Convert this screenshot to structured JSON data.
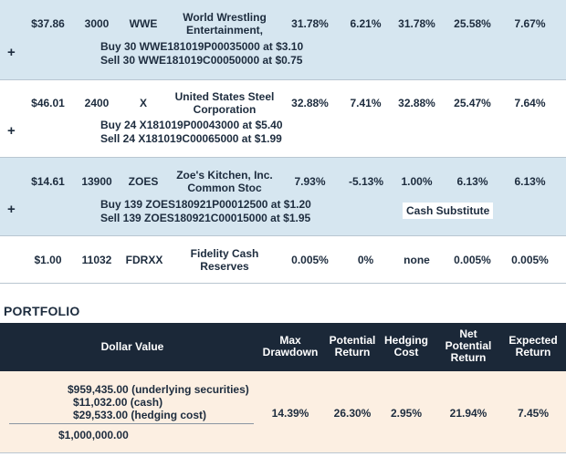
{
  "positions": [
    {
      "price": "$37.86",
      "shares": "3000",
      "ticker": "WWE",
      "name": [
        "World Wrestling",
        "Entertainment,"
      ],
      "c1": "31.78%",
      "c2": "6.21%",
      "c3": "31.78%",
      "c4": "25.58%",
      "c5": "7.67%",
      "buy": "Buy 30 WWE181019P00035000 at $3.10",
      "sell": "Sell 30 WWE181019C00050000 at $0.75",
      "expand": "+"
    },
    {
      "price": "$46.01",
      "shares": "2400",
      "ticker": "X",
      "name": [
        "United States Steel",
        "Corporation"
      ],
      "c1": "32.88%",
      "c2": "7.41%",
      "c3": "32.88%",
      "c4": "25.47%",
      "c5": "7.64%",
      "buy": "Buy 24 X181019P00043000 at $5.40",
      "sell": "Sell 24 X181019C00065000 at $1.99",
      "expand": "+"
    },
    {
      "price": "$14.61",
      "shares": "13900",
      "ticker": "ZOES",
      "name": [
        "Zoe's Kitchen, Inc.",
        "Common Stoc"
      ],
      "c1": "7.93%",
      "c2": "-5.13%",
      "c3": "1.00%",
      "c4": "6.13%",
      "c5": "6.13%",
      "buy": "Buy 139 ZOES180921P00012500 at $1.20",
      "sell": "Sell 139 ZOES180921C00015000 at $1.95",
      "badge": "Cash Substitute",
      "expand": "+"
    },
    {
      "price": "$1.00",
      "shares": "11032",
      "ticker": "FDRXX",
      "name": [
        "Fidelity Cash",
        "Reserves"
      ],
      "c1": "0.005%",
      "c2": "0%",
      "c3": "none",
      "c4": "0.005%",
      "c5": "0.005%"
    }
  ],
  "portfolio": {
    "title": "PORTFOLIO",
    "headers": {
      "dollar_value": "Dollar Value",
      "max_drawdown": [
        "Max",
        "Drawdown"
      ],
      "potential_return": [
        "Potential",
        "Return"
      ],
      "hedging_cost": [
        "Hedging",
        "Cost"
      ],
      "net_potential_return": [
        "Net",
        "Potential",
        "Return"
      ],
      "expected_return": [
        "Expected",
        "Return"
      ]
    },
    "values": {
      "underlying": "$959,435.00 (underlying securities)",
      "cash": "$11,032.00 (cash)",
      "hedging": "$29,533.00 (hedging cost)",
      "total": "$1,000,000.00"
    },
    "metrics": {
      "max_drawdown": "14.39%",
      "potential_return": "26.30%",
      "hedging_cost": "2.95%",
      "net_potential_return": "21.94%",
      "expected_return": "7.45%"
    }
  },
  "colors": {
    "row_blue": "#d6e6f0",
    "header_dark": "#1b2838",
    "summary_peach": "#fcefe2",
    "text": "#1d2c3e"
  }
}
